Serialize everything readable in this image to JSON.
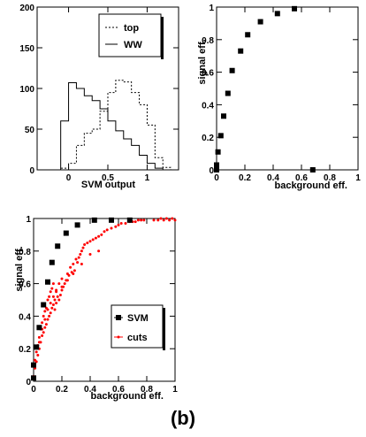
{
  "caption": "(b)",
  "chart_data": [
    {
      "type": "histogram",
      "xlabel": "SVM output",
      "ylabel": "",
      "xlim": [
        -0.4,
        1.4
      ],
      "ylim": [
        0,
        200
      ],
      "x_ticks": [
        0,
        0.5,
        1
      ],
      "x_tick_labels": [
        "0",
        "0.5",
        "1"
      ],
      "y_ticks": [
        0,
        50,
        100,
        150,
        200
      ],
      "y_tick_labels": [
        "0",
        "50",
        "100",
        "150",
        "200"
      ],
      "legend_position": "top-right",
      "bin_edges": [
        -0.3,
        -0.2,
        -0.1,
        0.0,
        0.1,
        0.2,
        0.3,
        0.4,
        0.5,
        0.6,
        0.7,
        0.8,
        0.9,
        1.0,
        1.1,
        1.2,
        1.3
      ],
      "series": [
        {
          "name": "top",
          "style": "dashed",
          "values": [
            0,
            0,
            2,
            8,
            30,
            45,
            50,
            72,
            95,
            110,
            108,
            95,
            80,
            55,
            15,
            3
          ]
        },
        {
          "name": "WW",
          "style": "solid",
          "values": [
            0,
            0,
            60,
            107,
            100,
            91,
            85,
            75,
            60,
            48,
            38,
            30,
            18,
            8,
            2,
            0
          ]
        }
      ]
    },
    {
      "type": "scatter",
      "xlabel": "background eff.",
      "ylabel": "signal eff.",
      "xlim": [
        0,
        1
      ],
      "ylim": [
        0,
        1
      ],
      "x_ticks": [
        0,
        0.2,
        0.4,
        0.6,
        0.8,
        1
      ],
      "x_tick_labels": [
        "0",
        "0.2",
        "0.4",
        "0.6",
        "0.8",
        "1"
      ],
      "y_ticks": [
        0,
        0.2,
        0.4,
        0.6,
        0.8,
        1
      ],
      "y_tick_labels": [
        "0",
        "0.2",
        "0.4",
        "0.6",
        "0.8",
        "1"
      ],
      "series": [
        {
          "marker": "square",
          "x": [
            0.0,
            0.0,
            0.01,
            0.03,
            0.05,
            0.08,
            0.11,
            0.17,
            0.22,
            0.31,
            0.43,
            0.55,
            0.68
          ],
          "y": [
            0.0,
            0.03,
            0.11,
            0.21,
            0.33,
            0.47,
            0.61,
            0.73,
            0.83,
            0.91,
            0.96,
            0.99,
            0.0
          ]
        }
      ]
    },
    {
      "type": "scatter",
      "xlabel": "background eff.",
      "ylabel": "signal eff.",
      "xlim": [
        0,
        1
      ],
      "ylim": [
        0,
        1
      ],
      "x_ticks": [
        0,
        0.2,
        0.4,
        0.6,
        0.8,
        1
      ],
      "x_tick_labels": [
        "0",
        "0.2",
        "0.4",
        "0.6",
        "0.8",
        "1"
      ],
      "y_ticks": [
        0,
        0.2,
        0.4,
        0.6,
        0.8,
        1
      ],
      "y_tick_labels": [
        "0",
        "0.2",
        "0.4",
        "0.6",
        "0.8",
        "1"
      ],
      "legend_position": "center-right",
      "series": [
        {
          "name": "SVM",
          "marker": "square",
          "color": "#000000",
          "x": [
            0.0,
            0.0,
            0.02,
            0.04,
            0.07,
            0.1,
            0.13,
            0.17,
            0.23,
            0.31,
            0.43,
            0.55,
            0.68
          ],
          "y": [
            0.02,
            0.1,
            0.21,
            0.33,
            0.47,
            0.61,
            0.73,
            0.83,
            0.91,
            0.96,
            0.99,
            0.99,
            0.99
          ]
        },
        {
          "name": "cuts",
          "marker": "dot",
          "color": "#ff0000",
          "x": [
            0.0,
            0.01,
            0.01,
            0.02,
            0.02,
            0.03,
            0.03,
            0.04,
            0.04,
            0.05,
            0.05,
            0.06,
            0.06,
            0.07,
            0.07,
            0.08,
            0.08,
            0.09,
            0.09,
            0.1,
            0.1,
            0.11,
            0.11,
            0.12,
            0.12,
            0.13,
            0.13,
            0.14,
            0.14,
            0.15,
            0.15,
            0.16,
            0.16,
            0.17,
            0.18,
            0.18,
            0.19,
            0.2,
            0.2,
            0.21,
            0.22,
            0.23,
            0.24,
            0.25,
            0.26,
            0.27,
            0.28,
            0.29,
            0.3,
            0.31,
            0.32,
            0.33,
            0.34,
            0.35,
            0.36,
            0.38,
            0.4,
            0.42,
            0.44,
            0.46,
            0.48,
            0.5,
            0.52,
            0.55,
            0.58,
            0.6,
            0.62,
            0.65,
            0.68,
            0.7,
            0.72,
            0.74,
            0.76,
            0.78,
            0.85,
            0.88,
            0.9,
            0.92,
            0.94,
            0.96,
            0.98,
            1.0,
            0.04,
            0.06,
            0.08,
            0.1,
            0.12,
            0.14,
            0.16,
            0.2,
            0.24,
            0.28,
            0.34,
            0.4,
            0.46
          ],
          "y": [
            0.03,
            0.08,
            0.13,
            0.12,
            0.18,
            0.16,
            0.22,
            0.2,
            0.27,
            0.24,
            0.32,
            0.28,
            0.36,
            0.3,
            0.4,
            0.33,
            0.43,
            0.35,
            0.45,
            0.38,
            0.5,
            0.4,
            0.52,
            0.42,
            0.55,
            0.45,
            0.57,
            0.47,
            0.6,
            0.44,
            0.5,
            0.48,
            0.55,
            0.52,
            0.5,
            0.6,
            0.53,
            0.56,
            0.63,
            0.58,
            0.6,
            0.62,
            0.66,
            0.65,
            0.7,
            0.67,
            0.72,
            0.68,
            0.75,
            0.73,
            0.76,
            0.78,
            0.8,
            0.82,
            0.84,
            0.85,
            0.86,
            0.87,
            0.88,
            0.89,
            0.9,
            0.92,
            0.93,
            0.94,
            0.95,
            0.96,
            0.97,
            0.97,
            0.98,
            0.98,
            0.98,
            0.99,
            0.99,
            0.99,
            0.99,
            0.99,
            1.0,
            0.99,
            1.0,
            0.99,
            1.0,
            0.99,
            0.24,
            0.32,
            0.38,
            0.44,
            0.48,
            0.52,
            0.56,
            0.58,
            0.62,
            0.66,
            0.72,
            0.78,
            0.8
          ]
        }
      ]
    }
  ]
}
